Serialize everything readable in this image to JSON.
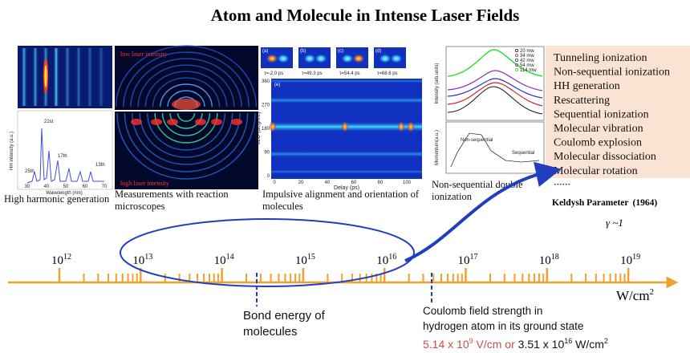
{
  "title": "Atom and Molecule in Intense Laser Fields",
  "panels": {
    "hhg": {
      "caption": "High harmonic generation",
      "y_label": "HH intensity (a.u.)",
      "x_label": "Wavelength (nm)",
      "x_ticks": [
        "30",
        "40",
        "50",
        "60",
        "70"
      ],
      "peaks": [
        "25th",
        "21st",
        "17th",
        "13th"
      ]
    },
    "microscope": {
      "caption_lines": [
        "Measurements with reaction",
        "microscopes"
      ],
      "top_label": "low laser intensity",
      "bottom_label": "high laser intensity"
    },
    "alignment": {
      "caption_lines": [
        "Impulsive alignment and orientation of",
        "molecules"
      ],
      "snapshots": [
        {
          "tag": "(a)",
          "time": "τ=-2.0 ps"
        },
        {
          "tag": "(b)",
          "time": "τ=49.3 ps"
        },
        {
          "tag": "(c)",
          "time": "τ=54.4 ps"
        },
        {
          "tag": "(d)",
          "time": "τ=68.6 ps"
        }
      ],
      "map_tag": "(e)",
      "y_label": "θ2D (degree)",
      "y_ticks": [
        "360",
        "270",
        "180",
        "90",
        "0"
      ],
      "x_label": "Delay (ps)",
      "x_ticks": [
        "0",
        "20",
        "40",
        "60",
        "80",
        "100"
      ]
    },
    "nsdi": {
      "caption_lines": [
        "Non-sequential double",
        "ionization"
      ],
      "legend": [
        "20 mw",
        "34 mw",
        "42 mw",
        "54 mw",
        "114 mw"
      ],
      "top_y_label": "Intensity (arb.units)",
      "bottom_y_label": "Momentum(a.u.)",
      "curve_labels": [
        "Non-sequential",
        "Sequential"
      ]
    }
  },
  "phenomena": {
    "items": [
      "Tunneling ionization",
      "Non-sequential ionization",
      "HH generation",
      "Rescattering",
      "Sequential ionization",
      "Molecular vibration",
      "Coulomb explosion",
      "Molecular dissociation",
      "Molecular rotation"
    ],
    "more": "......"
  },
  "keldysh": {
    "label": "Keldysh Parameter",
    "year": "(1964)",
    "condition": "γ ~1"
  },
  "scale": {
    "ticks": [
      {
        "base": "10",
        "exp": "12"
      },
      {
        "base": "10",
        "exp": "13"
      },
      {
        "base": "10",
        "exp": "14"
      },
      {
        "base": "10",
        "exp": "15"
      },
      {
        "base": "10",
        "exp": "16"
      },
      {
        "base": "10",
        "exp": "17"
      },
      {
        "base": "10",
        "exp": "18"
      },
      {
        "base": "10",
        "exp": "19"
      }
    ],
    "unit": {
      "text": "W/cm",
      "exp": "2"
    }
  },
  "bond_energy": {
    "lines": [
      "Bond energy of",
      "molecules"
    ]
  },
  "coulomb": {
    "lines": [
      "Coulomb field strength in",
      "hydrogen atom in its ground state"
    ],
    "values": [
      "5.14 x 10",
      "9",
      " V/cm",
      " or ",
      "3.51 x 10",
      "16",
      " W/cm",
      "2"
    ]
  }
}
